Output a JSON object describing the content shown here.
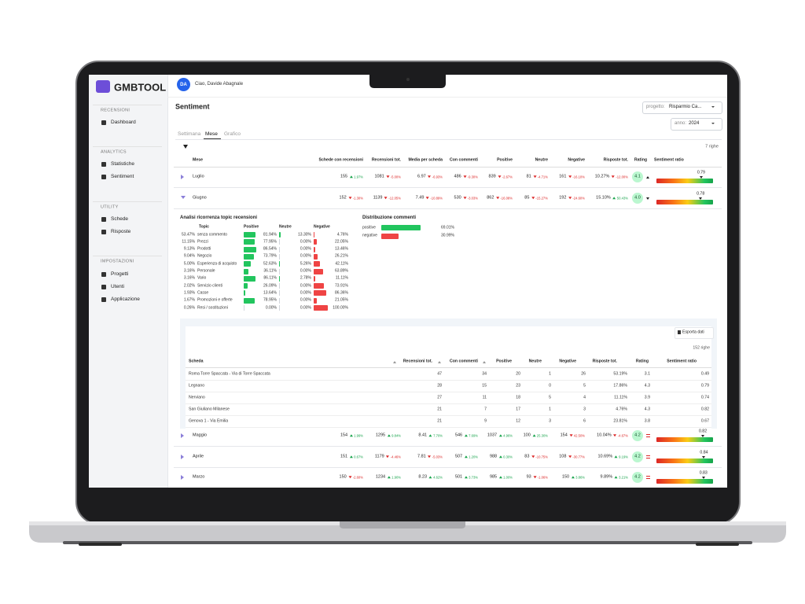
{
  "sidebar": {
    "logo": "GMBTOOL",
    "sections": [
      {
        "title": "RECENSIONI",
        "items": [
          "Dashboard"
        ]
      },
      {
        "title": "ANALYTICS",
        "items": [
          "Statistiche",
          "Sentiment"
        ]
      },
      {
        "title": "UTILITY",
        "items": [
          "Schede",
          "Risposte"
        ]
      },
      {
        "title": "IMPOSTAZIONI",
        "items": [
          "Progetti",
          "Utenti",
          "Applicazione"
        ]
      }
    ]
  },
  "header": {
    "avatar": "DA",
    "greeting": "Ciao, Davide Abagnale"
  },
  "page": {
    "title": "Sentiment",
    "project_label": "progetto:",
    "project_value": "Risparmio Ca...",
    "year_label": "anno:",
    "year_value": "2024",
    "tabs": [
      "Settimana",
      "Mese",
      "Grafico"
    ],
    "active_tab": 1,
    "row_count": "7 righe"
  },
  "table": {
    "columns": [
      "Mese",
      "Schede con recensioni",
      "Recensioni tot.",
      "Media per scheda",
      "Con commenti",
      "Positive",
      "Neutre",
      "Negative",
      "Risposte tot.",
      "Rating",
      "Sentiment ratio"
    ],
    "rows": [
      {
        "month": "Luglio",
        "expanded": false,
        "cells": [
          {
            "value": "155",
            "delta": "1.97%",
            "trend": "up"
          },
          {
            "value": "1081",
            "delta": "-5.00%",
            "trend": "down"
          },
          {
            "value": "6.97",
            "delta": "-6.93%",
            "trend": "down"
          },
          {
            "value": "486",
            "delta": "-9.30%",
            "trend": "down"
          },
          {
            "value": "839",
            "delta": "-2.67%",
            "trend": "down"
          },
          {
            "value": "81",
            "delta": "-4.71%",
            "trend": "down"
          },
          {
            "value": "161",
            "delta": "-16.10%",
            "trend": "down"
          },
          {
            "value": "10.27%",
            "delta": "-12.00%",
            "trend": "down"
          }
        ],
        "rating": "4.1",
        "rating_trend": "up",
        "ratio": 0.79
      },
      {
        "month": "Giugno",
        "expanded": true,
        "cells": [
          {
            "value": "152",
            "delta": "-1.30%",
            "trend": "down"
          },
          {
            "value": "1139",
            "delta": "-12.05%",
            "trend": "down"
          },
          {
            "value": "7.49",
            "delta": "-10.89%",
            "trend": "down"
          },
          {
            "value": "530",
            "delta": "-3.03%",
            "trend": "down"
          },
          {
            "value": "862",
            "delta": "-16.08%",
            "trend": "down"
          },
          {
            "value": "85",
            "delta": "-15.27%",
            "trend": "down"
          },
          {
            "value": "192",
            "delta": "-24.60%",
            "trend": "down"
          },
          {
            "value": "15.10%",
            "delta": "50.43%",
            "trend": "up"
          }
        ],
        "rating": "4.0",
        "rating_trend": "down",
        "ratio": 0.78
      },
      {
        "month": "Maggio",
        "expanded": false,
        "cells": [
          {
            "value": "154",
            "delta": "1.99%",
            "trend": "up"
          },
          {
            "value": "1295",
            "delta": "9.84%",
            "trend": "up"
          },
          {
            "value": "8.41",
            "delta": "7.70%",
            "trend": "up"
          },
          {
            "value": "546",
            "delta": "7.69%",
            "trend": "up"
          },
          {
            "value": "1037",
            "delta": "4.96%",
            "trend": "up"
          },
          {
            "value": "100",
            "delta": "25.30%",
            "trend": "up"
          },
          {
            "value": "154",
            "delta": "42.50%",
            "trend": "down"
          },
          {
            "value": "10.04%",
            "delta": "-4.67%",
            "trend": "down"
          }
        ],
        "rating": "4.2",
        "rating_trend": "equal",
        "ratio": 0.82
      },
      {
        "month": "Aprile",
        "expanded": false,
        "cells": [
          {
            "value": "151",
            "delta": "0.67%",
            "trend": "up"
          },
          {
            "value": "1179",
            "delta": "-4.46%",
            "trend": "down"
          },
          {
            "value": "7.81",
            "delta": "-5.03%",
            "trend": "down"
          },
          {
            "value": "507",
            "delta": "1.20%",
            "trend": "up"
          },
          {
            "value": "988",
            "delta": "0.30%",
            "trend": "up"
          },
          {
            "value": "83",
            "delta": "-10.75%",
            "trend": "down"
          },
          {
            "value": "108",
            "delta": "-30.77%",
            "trend": "down"
          },
          {
            "value": "10.69%",
            "delta": "9.19%",
            "trend": "up"
          }
        ],
        "rating": "4.2",
        "rating_trend": "equal",
        "ratio": 0.84
      },
      {
        "month": "Marzo",
        "expanded": false,
        "cells": [
          {
            "value": "150",
            "delta": "-2.60%",
            "trend": "down"
          },
          {
            "value": "1234",
            "delta": "1.90%",
            "trend": "up"
          },
          {
            "value": "8.23",
            "delta": "4.62%",
            "trend": "up"
          },
          {
            "value": "501",
            "delta": "3.73%",
            "trend": "up"
          },
          {
            "value": "985",
            "delta": "1.00%",
            "trend": "up"
          },
          {
            "value": "93",
            "delta": "-1.06%",
            "trend": "down"
          },
          {
            "value": "150",
            "delta": "3.86%",
            "trend": "up"
          },
          {
            "value": "9.89%",
            "delta": "3.21%",
            "trend": "up"
          }
        ],
        "rating": "4.2",
        "rating_trend": "equal",
        "ratio": 0.83
      }
    ]
  },
  "topics": {
    "title": "Analisi ricorrenza topic recensioni",
    "columns": [
      "Topic",
      "Positive",
      "Neutre",
      "Negative"
    ],
    "rows": [
      {
        "share": "53.47%",
        "topic": "senza commento",
        "positive": {
          "value": 81.94,
          "label": "81.94%"
        },
        "neutral": {
          "value": 13.3,
          "label": "13.30%"
        },
        "negative": {
          "value": 4.76,
          "label": "4.76%"
        }
      },
      {
        "share": "11.15%",
        "topic": "Prezzi",
        "positive": {
          "value": 77.95,
          "label": "77.95%"
        },
        "neutral": {
          "value": 0,
          "label": "0.00%"
        },
        "negative": {
          "value": 22.05,
          "label": "22.05%"
        }
      },
      {
        "share": "9.13%",
        "topic": "Prodotti",
        "positive": {
          "value": 86.54,
          "label": "86.54%"
        },
        "neutral": {
          "value": 0,
          "label": "0.00%"
        },
        "negative": {
          "value": 13.46,
          "label": "13.46%"
        }
      },
      {
        "share": "9.04%",
        "topic": "Negozio",
        "positive": {
          "value": 73.79,
          "label": "73.79%"
        },
        "neutral": {
          "value": 0,
          "label": "0.00%"
        },
        "negative": {
          "value": 26.21,
          "label": "26.21%"
        }
      },
      {
        "share": "5.00%",
        "topic": "Esperienza di acquisto",
        "positive": {
          "value": 52.63,
          "label": "52.63%"
        },
        "neutral": {
          "value": 5.26,
          "label": "5.26%"
        },
        "negative": {
          "value": 42.11,
          "label": "42.11%"
        }
      },
      {
        "share": "3.16%",
        "topic": "Personale",
        "positive": {
          "value": 36.11,
          "label": "36.11%"
        },
        "neutral": {
          "value": 0,
          "label": "0.00%"
        },
        "negative": {
          "value": 63.89,
          "label": "63.89%"
        }
      },
      {
        "share": "3.16%",
        "topic": "Vario",
        "positive": {
          "value": 86.11,
          "label": "86.11%"
        },
        "neutral": {
          "value": 2.78,
          "label": "2.78%"
        },
        "negative": {
          "value": 11.11,
          "label": "11.11%"
        }
      },
      {
        "share": "2.02%",
        "topic": "Servizio clienti",
        "positive": {
          "value": 26.09,
          "label": "26.09%"
        },
        "neutral": {
          "value": 0,
          "label": "0.00%"
        },
        "negative": {
          "value": 73.91,
          "label": "73.91%"
        }
      },
      {
        "share": "1.93%",
        "topic": "Casse",
        "positive": {
          "value": 13.64,
          "label": "13.64%"
        },
        "neutral": {
          "value": 0,
          "label": "0.00%"
        },
        "negative": {
          "value": 86.36,
          "label": "86.36%"
        }
      },
      {
        "share": "1.67%",
        "topic": "Promozioni e offerte",
        "positive": {
          "value": 78.95,
          "label": "78.95%"
        },
        "neutral": {
          "value": 0,
          "label": "0.00%"
        },
        "negative": {
          "value": 21.05,
          "label": "21.05%"
        }
      },
      {
        "share": "0.26%",
        "topic": "Resi / sostituzioni",
        "positive": {
          "value": 0,
          "label": "0.00%"
        },
        "neutral": {
          "value": 0,
          "label": "0.00%"
        },
        "negative": {
          "value": 100,
          "label": "100.00%"
        }
      }
    ]
  },
  "distribution": {
    "title": "Distribuzione commenti",
    "items": [
      {
        "name": "positive",
        "value": 69.01,
        "label": "69.01%"
      },
      {
        "name": "negative",
        "value": 30.99,
        "label": "30.99%"
      }
    ]
  },
  "detail": {
    "export": "Esporta dati",
    "row_count": "152 righe",
    "columns": [
      "Scheda",
      "Recensioni tot.",
      "Con commenti",
      "Positive",
      "Neutre",
      "Negative",
      "Risposte tot.",
      "Rating",
      "Sentiment ratio"
    ],
    "rows": [
      [
        "Roma Torre Spaccata - Via di Torre Spaccata",
        "47",
        "34",
        "20",
        "1",
        "26",
        "53.19%",
        "3.1",
        "0.49"
      ],
      [
        "Legnano",
        "28",
        "15",
        "23",
        "0",
        "5",
        "17.86%",
        "4.3",
        "0.79"
      ],
      [
        "Nerviano",
        "27",
        "11",
        "18",
        "5",
        "4",
        "11.11%",
        "3.9",
        "0.74"
      ],
      [
        "San Giuliano Milanese",
        "21",
        "7",
        "17",
        "1",
        "3",
        "4.76%",
        "4.3",
        "0.82"
      ],
      [
        "Genova 1 - Via Emilia",
        "21",
        "9",
        "12",
        "3",
        "6",
        "23.81%",
        "3.8",
        "0.67"
      ]
    ]
  }
}
